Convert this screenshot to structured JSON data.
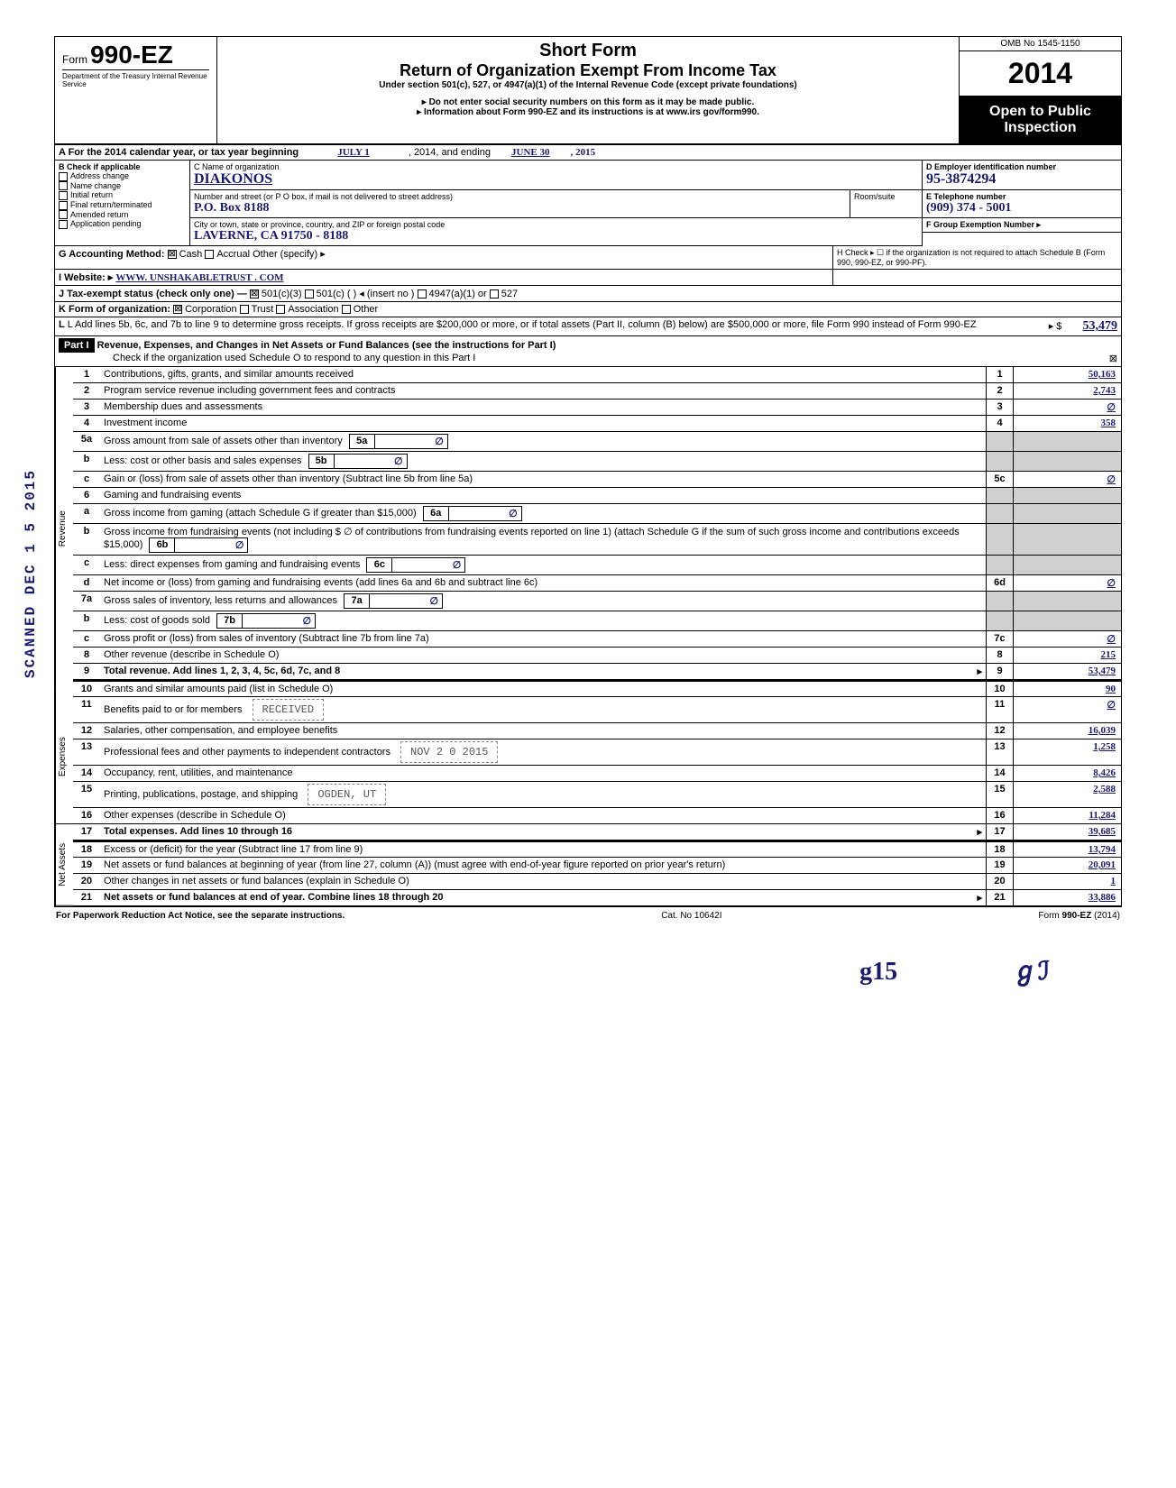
{
  "header": {
    "form_prefix": "Form",
    "form_number": "990-EZ",
    "short_form": "Short Form",
    "title": "Return of Organization Exempt From Income Tax",
    "subtitle": "Under section 501(c), 527, or 4947(a)(1) of the Internal Revenue Code (except private foundations)",
    "note1": "Do not enter social security numbers on this form as it may be made public.",
    "note2": "Information about Form 990-EZ and its instructions is at www.irs gov/form990.",
    "dept": "Department of the Treasury Internal Revenue Service",
    "omb": "OMB No 1545-1150",
    "year": "2014",
    "open": "Open to Public Inspection"
  },
  "period": {
    "label_a": "A For the 2014 calendar year, or tax year beginning",
    "begin": "JULY 1",
    "mid": ", 2014, and ending",
    "end": "JUNE 30",
    "end_year": ", 2015"
  },
  "section_b": {
    "header": "B Check if applicable",
    "items": [
      "Address change",
      "Name change",
      "Initial return",
      "Final return/terminated",
      "Amended return",
      "Application pending"
    ]
  },
  "section_c": {
    "label_name": "C Name of organization",
    "name": "DIAKONOS",
    "label_addr": "Number and street (or P O box, if mail is not delivered to street address)",
    "room": "Room/suite",
    "addr": "P.O. Box     8188",
    "label_city": "City or town, state or province, country, and ZIP or foreign postal code",
    "city": "LAVERNE,   CA        91750 - 8188"
  },
  "section_d": {
    "label": "D Employer identification number",
    "ein": "95-3874294"
  },
  "section_e": {
    "label": "E Telephone number",
    "phone": "(909) 374 - 5001"
  },
  "section_f": {
    "label": "F Group Exemption Number ▸",
    "val": ""
  },
  "section_g": {
    "label": "G Accounting Method:",
    "cash": "Cash",
    "accrual": "Accrual",
    "other": "Other (specify) ▸"
  },
  "section_h": {
    "text": "H Check ▸ ☐ if the organization is not required to attach Schedule B (Form 990, 990-EZ, or 990-PF)."
  },
  "section_i": {
    "label": "I  Website: ▸",
    "url": "WWW. UNSHAKABLETRUST . COM"
  },
  "section_j": {
    "label": "J Tax-exempt status (check only one) —",
    "opt1": "501(c)(3)",
    "opt2": "501(c) (    ) ◂ (insert no )",
    "opt3": "4947(a)(1) or",
    "opt4": "527"
  },
  "section_k": {
    "label": "K Form of organization:",
    "corp": "Corporation",
    "trust": "Trust",
    "assoc": "Association",
    "other": "Other"
  },
  "section_l": {
    "text": "L Add lines 5b, 6c, and 7b to line 9 to determine gross receipts. If gross receipts are $200,000 or more, or if total assets (Part II, column (B) below) are $500,000 or more, file Form 990 instead of Form 990-EZ",
    "arrow": "▸  $",
    "value": "53,479"
  },
  "part1": {
    "header": "Part I",
    "title": "Revenue, Expenses, and Changes in Net Assets or Fund Balances (see the instructions for Part I)",
    "check_text": "Check if the organization used Schedule O to respond to any question in this Part I",
    "checked": "⊠"
  },
  "revenue_label": "Revenue",
  "expenses_label": "Expenses",
  "netassets_label": "Net Assets",
  "lines": {
    "l1": {
      "num": "1",
      "text": "Contributions, gifts, grants, and similar amounts received",
      "box": "1",
      "val": "50,163"
    },
    "l2": {
      "num": "2",
      "text": "Program service revenue including government fees and contracts",
      "box": "2",
      "val": "2,743"
    },
    "l3": {
      "num": "3",
      "text": "Membership dues and assessments",
      "box": "3",
      "val": "∅"
    },
    "l4": {
      "num": "4",
      "text": "Investment income",
      "box": "4",
      "val": "358"
    },
    "l5a": {
      "num": "5a",
      "text": "Gross amount from sale of assets other than inventory",
      "sub": "5a",
      "subval": "∅"
    },
    "l5b": {
      "num": "b",
      "text": "Less: cost or other basis and sales expenses",
      "sub": "5b",
      "subval": "∅"
    },
    "l5c": {
      "num": "c",
      "text": "Gain or (loss) from sale of assets other than inventory (Subtract line 5b from line 5a)",
      "box": "5c",
      "val": "∅"
    },
    "l6": {
      "num": "6",
      "text": "Gaming and fundraising events"
    },
    "l6a": {
      "num": "a",
      "text": "Gross income from gaming (attach Schedule G if greater than $15,000)",
      "sub": "6a",
      "subval": "∅"
    },
    "l6b": {
      "num": "b",
      "text": "Gross income from fundraising events (not including  $   ∅    of contributions from fundraising events reported on line 1) (attach Schedule G if the sum of such gross income and contributions exceeds $15,000)",
      "sub": "6b",
      "subval": "∅"
    },
    "l6c": {
      "num": "c",
      "text": "Less: direct expenses from gaming and fundraising events",
      "sub": "6c",
      "subval": "∅"
    },
    "l6d": {
      "num": "d",
      "text": "Net income or (loss) from gaming and fundraising events (add lines 6a and 6b and subtract line 6c)",
      "box": "6d",
      "val": "∅"
    },
    "l7a": {
      "num": "7a",
      "text": "Gross sales of inventory, less returns and allowances",
      "sub": "7a",
      "subval": "∅"
    },
    "l7b": {
      "num": "b",
      "text": "Less: cost of goods sold",
      "sub": "7b",
      "subval": "∅"
    },
    "l7c": {
      "num": "c",
      "text": "Gross profit or (loss) from sales of inventory (Subtract line 7b from line 7a)",
      "box": "7c",
      "val": "∅"
    },
    "l8": {
      "num": "8",
      "text": "Other revenue (describe in Schedule O)",
      "box": "8",
      "val": "215"
    },
    "l9": {
      "num": "9",
      "text": "Total revenue. Add lines 1, 2, 3, 4, 5c, 6d, 7c, and 8",
      "box": "9",
      "val": "53,479"
    },
    "l10": {
      "num": "10",
      "text": "Grants and similar amounts paid (list in Schedule O)",
      "box": "10",
      "val": "90"
    },
    "l11": {
      "num": "11",
      "text": "Benefits paid to or for members",
      "box": "11",
      "val": "∅"
    },
    "l12": {
      "num": "12",
      "text": "Salaries, other compensation, and employee benefits",
      "box": "12",
      "val": "16,039"
    },
    "l13": {
      "num": "13",
      "text": "Professional fees and other payments to independent contractors",
      "box": "13",
      "val": "1,258"
    },
    "l14": {
      "num": "14",
      "text": "Occupancy, rent, utilities, and maintenance",
      "box": "14",
      "val": "8,426"
    },
    "l15": {
      "num": "15",
      "text": "Printing, publications, postage, and shipping",
      "box": "15",
      "val": "2,588"
    },
    "l16": {
      "num": "16",
      "text": "Other expenses (describe in Schedule O)",
      "box": "16",
      "val": "11,284"
    },
    "l17": {
      "num": "17",
      "text": "Total expenses. Add lines 10 through 16",
      "box": "17",
      "val": "39,685"
    },
    "l18": {
      "num": "18",
      "text": "Excess or (deficit) for the year (Subtract line 17 from line 9)",
      "box": "18",
      "val": "13,794"
    },
    "l19": {
      "num": "19",
      "text": "Net assets or fund balances at beginning of year (from line 27, column (A)) (must agree with end-of-year figure reported on prior year's return)",
      "box": "19",
      "val": "20,091"
    },
    "l20": {
      "num": "20",
      "text": "Other changes in net assets or fund balances (explain in Schedule O)",
      "box": "20",
      "val": "1"
    },
    "l21": {
      "num": "21",
      "text": "Net assets or fund balances at end of year. Combine lines 18 through 20",
      "box": "21",
      "val": "33,886"
    }
  },
  "received": {
    "line1": "RECEIVED",
    "line2": "NOV 2 0 2015",
    "line3": "OGDEN, UT"
  },
  "footer": {
    "left": "For Paperwork Reduction Act Notice, see the separate instructions.",
    "center": "Cat. No 10642I",
    "right": "Form 990-EZ (2014)"
  },
  "scanned": "SCANNED DEC 1 5 2015",
  "bottom_hand1": "g15",
  "bottom_hand2": "ℊℐ"
}
